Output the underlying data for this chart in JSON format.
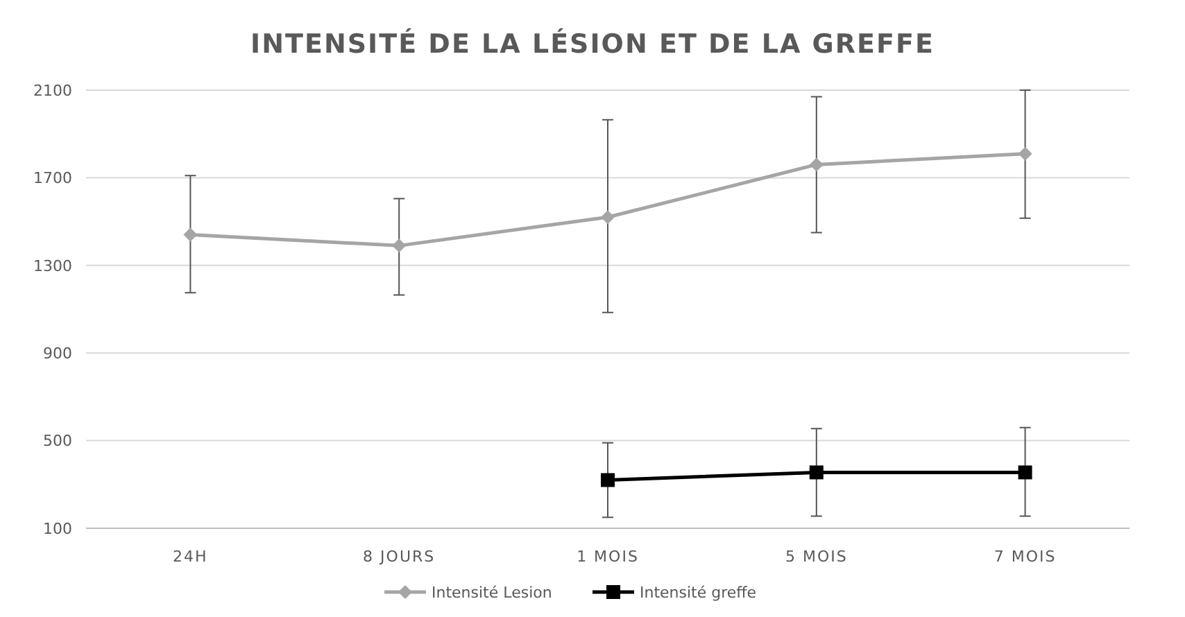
{
  "chart_data": {
    "type": "line",
    "title": "INTENSITÉ DE LA LÉSION ET DE LA GREFFE",
    "categories": [
      "24H",
      "8 JOURS",
      "1 MOIS",
      "5 MOIS",
      "7 MOIS"
    ],
    "series": [
      {
        "name": "Intensité Lesion",
        "color": "#a5a5a5",
        "marker": "diamond",
        "values": [
          1440,
          1390,
          1520,
          1760,
          1810
        ],
        "errors": [
          [
            1175,
            1710
          ],
          [
            1165,
            1605
          ],
          [
            1085,
            1965
          ],
          [
            1450,
            2070
          ],
          [
            1515,
            2100
          ]
        ]
      },
      {
        "name": "Intensité greffe",
        "color": "#000000",
        "marker": "square",
        "values": [
          null,
          null,
          320,
          355,
          355
        ],
        "errors": [
          null,
          null,
          [
            150,
            490
          ],
          [
            155,
            555
          ],
          [
            155,
            560
          ]
        ]
      }
    ],
    "ylim": [
      100,
      2100
    ],
    "yticks": [
      100,
      500,
      900,
      1300,
      1700,
      2100
    ],
    "grid": "y",
    "legend": "bottom"
  }
}
